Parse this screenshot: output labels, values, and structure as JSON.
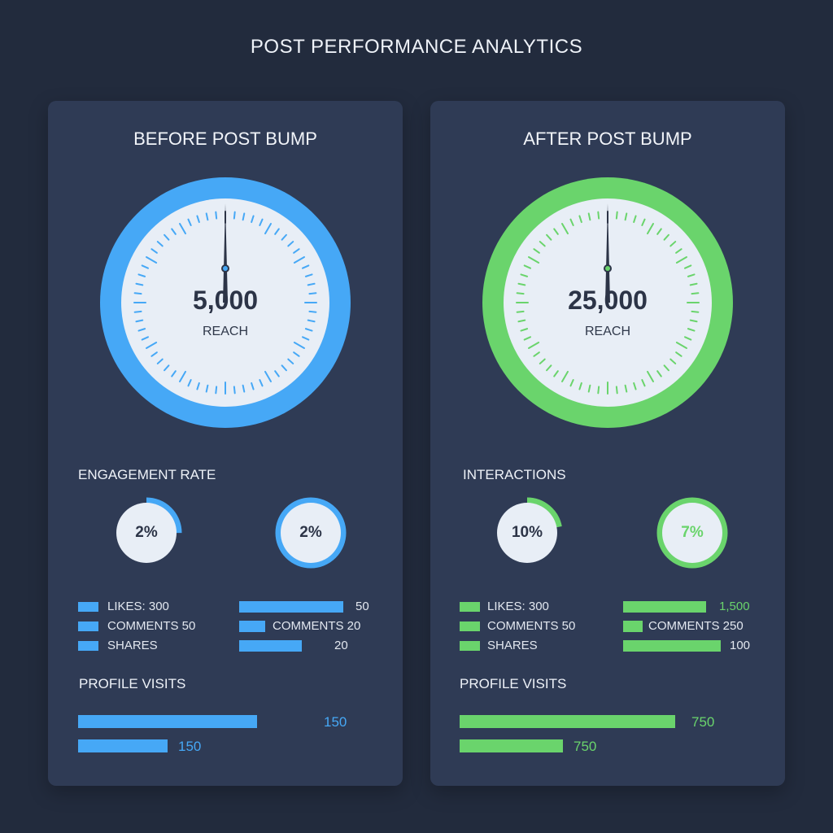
{
  "page_title": "POST PERFORMANCE ANALYTICS",
  "colors": {
    "blue": "#46a8f6",
    "green": "#6ad46c",
    "panel": "#2f3b55",
    "background": "#222b3d"
  },
  "before": {
    "title": "BEFORE POST BUMP",
    "gauge": {
      "value": "5,000",
      "label": "REACH"
    },
    "section_title": "ENGAGEMENT RATE",
    "rings": [
      {
        "label": "2%",
        "fraction": 0.25
      },
      {
        "label": "2%",
        "fraction": 1.0
      }
    ],
    "legend": [
      {
        "text": "LIKES: 300"
      },
      {
        "text": "COMMENTS 50"
      },
      {
        "text": "SHARES"
      }
    ],
    "bars": [
      {
        "label": "",
        "value": "50",
        "fraction": 1.0
      },
      {
        "label": "COMMENTS 20",
        "value": "",
        "fraction": 0.25
      },
      {
        "label": "",
        "value": "20",
        "fraction": 0.6
      }
    ],
    "visits_title": "PROFILE VISITS",
    "visits": [
      {
        "value": "150",
        "fraction": 1.0
      },
      {
        "value": "150",
        "fraction": 0.5
      }
    ]
  },
  "after": {
    "title": "AFTER POST BUMP",
    "gauge": {
      "value": "25,000",
      "label": "REACH"
    },
    "section_title": "INTERACTIONS",
    "rings": [
      {
        "label": "10%",
        "fraction": 0.22
      },
      {
        "label": "7%",
        "fraction": 1.0
      }
    ],
    "legend": [
      {
        "text": "LIKES: 300"
      },
      {
        "text": "COMMENTS 50"
      },
      {
        "text": "SHARES"
      }
    ],
    "bars": [
      {
        "label": "",
        "value": "1,500",
        "fraction": 0.85
      },
      {
        "label": "COMMENTS 250",
        "value": "",
        "fraction": 0.2
      },
      {
        "label": "",
        "value": "100",
        "fraction": 1.0
      }
    ],
    "visits_title": "PROFILE VISITS",
    "visits": [
      {
        "value": "750",
        "fraction": 1.0
      },
      {
        "value": "750",
        "fraction": 0.48
      }
    ]
  }
}
